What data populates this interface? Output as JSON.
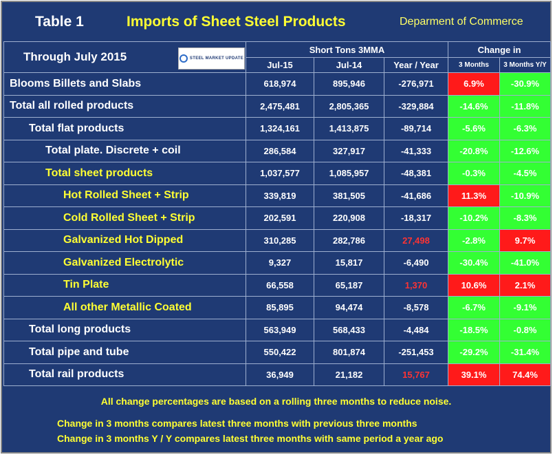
{
  "header": {
    "table_label": "Table 1",
    "title": "Imports of Sheet Steel Products",
    "department": "Deparment of Commerce"
  },
  "subheader": {
    "through": "Through July 2015",
    "logo_text": "STEEL MARKET UPDATE",
    "short_tons": "Short Tons 3MMA",
    "change_in": "Change in",
    "col_jul15": "Jul-15",
    "col_jul14": "Jul-14",
    "col_yoy": "Year / Year",
    "col_3m": "3 Months",
    "col_3m_yy": "3 Months Y/Y"
  },
  "rows": [
    {
      "label": "Blooms Billets and Slabs",
      "jul15": "618,974",
      "jul14": "895,946",
      "yoy": "-276,971",
      "m3": "6.9%",
      "m3yy": "-30.9%"
    },
    {
      "label": "Total all rolled products",
      "jul15": "2,475,481",
      "jul14": "2,805,365",
      "yoy": "-329,884",
      "m3": "-14.6%",
      "m3yy": "-11.8%"
    },
    {
      "label": "Total flat products",
      "jul15": "1,324,161",
      "jul14": "1,413,875",
      "yoy": "-89,714",
      "m3": "-5.6%",
      "m3yy": "-6.3%"
    },
    {
      "label": "Total plate. Discrete + coil",
      "jul15": "286,584",
      "jul14": "327,917",
      "yoy": "-41,333",
      "m3": "-20.8%",
      "m3yy": "-12.6%"
    },
    {
      "label": "Total sheet products",
      "jul15": "1,037,577",
      "jul14": "1,085,957",
      "yoy": "-48,381",
      "m3": "-0.3%",
      "m3yy": "-4.5%"
    },
    {
      "label": "Hot Rolled Sheet + Strip",
      "jul15": "339,819",
      "jul14": "381,505",
      "yoy": "-41,686",
      "m3": "11.3%",
      "m3yy": "-10.9%"
    },
    {
      "label": "Cold Rolled Sheet + Strip",
      "jul15": "202,591",
      "jul14": "220,908",
      "yoy": "-18,317",
      "m3": "-10.2%",
      "m3yy": "-8.3%"
    },
    {
      "label": "Galvanized Hot Dipped",
      "jul15": "310,285",
      "jul14": "282,786",
      "yoy": "27,498",
      "m3": "-2.8%",
      "m3yy": "9.7%"
    },
    {
      "label": "Galvanized Electrolytic",
      "jul15": "9,327",
      "jul14": "15,817",
      "yoy": "-6,490",
      "m3": "-30.4%",
      "m3yy": "-41.0%"
    },
    {
      "label": "Tin Plate",
      "jul15": "66,558",
      "jul14": "65,187",
      "yoy": "1,370",
      "m3": "10.6%",
      "m3yy": "2.1%"
    },
    {
      "label": "All other Metallic Coated",
      "jul15": "85,895",
      "jul14": "94,474",
      "yoy": "-8,578",
      "m3": "-6.7%",
      "m3yy": "-9.1%"
    },
    {
      "label": "Total long products",
      "jul15": "563,949",
      "jul14": "568,433",
      "yoy": "-4,484",
      "m3": "-18.5%",
      "m3yy": "-0.8%"
    },
    {
      "label": "Total pipe and tube",
      "jul15": "550,422",
      "jul14": "801,874",
      "yoy": "-251,453",
      "m3": "-29.2%",
      "m3yy": "-31.4%"
    },
    {
      "label": "Total rail products",
      "jul15": "36,949",
      "jul14": "21,182",
      "yoy": "15,767",
      "m3": "39.1%",
      "m3yy": "74.4%"
    }
  ],
  "notes": {
    "line1": "All change percentages are based on a rolling three months to reduce noise.",
    "line2": "Change in 3 months compares latest three months with previous three months",
    "line3": "Change in 3 months  Y / Y compares latest three months with same period a year ago"
  }
}
